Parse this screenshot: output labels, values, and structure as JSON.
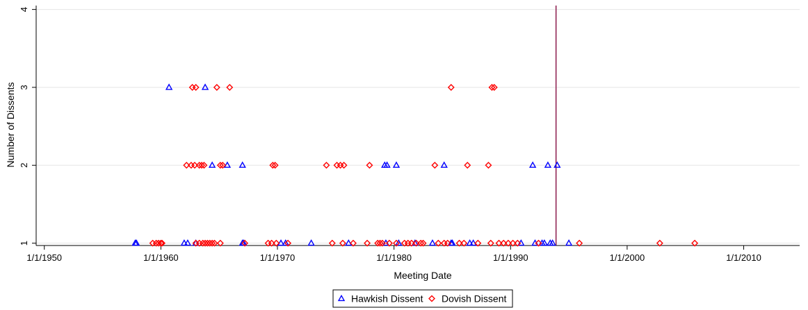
{
  "chart_data": {
    "type": "scatter",
    "title": "",
    "xlabel": "Meeting Date",
    "ylabel": "Number of Dissents",
    "xlim": [
      1949.3,
      2014.8
    ],
    "ylim": [
      0.97,
      4.05
    ],
    "x_ticks": [
      1950,
      1960,
      1970,
      1980,
      1990,
      2000,
      2010
    ],
    "x_tick_labels": [
      "1/1/1950",
      "1/1/1960",
      "1/1/1970",
      "1/1/1980",
      "1/1/1990",
      "1/1/2000",
      "1/1/2010"
    ],
    "y_ticks": [
      1,
      2,
      3,
      4
    ],
    "y_tick_labels": [
      "1",
      "2",
      "3",
      "4"
    ],
    "grid": "horizontal",
    "legend_position": "bottom-center",
    "reference_line": {
      "x": 1993.9,
      "color": "#8b1a4b"
    },
    "series": [
      {
        "name": "Hawkish Dissent",
        "marker": "triangle",
        "color": "#0000ff",
        "points": [
          [
            1957.8,
            1
          ],
          [
            1957.9,
            1
          ],
          [
            1962.0,
            1
          ],
          [
            1962.3,
            1
          ],
          [
            1963.0,
            1
          ],
          [
            1967.0,
            1
          ],
          [
            1967.1,
            1
          ],
          [
            1970.3,
            1
          ],
          [
            1970.7,
            1
          ],
          [
            1972.9,
            1
          ],
          [
            1976.1,
            1
          ],
          [
            1979.3,
            1
          ],
          [
            1980.4,
            1
          ],
          [
            1981.8,
            1
          ],
          [
            1983.3,
            1
          ],
          [
            1984.9,
            1
          ],
          [
            1985.0,
            1
          ],
          [
            1986.5,
            1
          ],
          [
            1986.8,
            1
          ],
          [
            1990.9,
            1
          ],
          [
            1992.1,
            1
          ],
          [
            1992.7,
            1
          ],
          [
            1992.9,
            1
          ],
          [
            1993.4,
            1
          ],
          [
            1993.6,
            1
          ],
          [
            1995.0,
            1
          ],
          [
            1964.4,
            2
          ],
          [
            1965.7,
            2
          ],
          [
            1967.0,
            2
          ],
          [
            1979.2,
            2
          ],
          [
            1979.4,
            2
          ],
          [
            1980.2,
            2
          ],
          [
            1984.3,
            2
          ],
          [
            1991.9,
            2
          ],
          [
            1993.2,
            2
          ],
          [
            1994.0,
            2
          ],
          [
            1960.7,
            3
          ],
          [
            1963.8,
            3
          ]
        ]
      },
      {
        "name": "Dovish Dissent",
        "marker": "diamond",
        "color": "#ff0000",
        "points": [
          [
            1959.3,
            1
          ],
          [
            1959.6,
            1
          ],
          [
            1959.8,
            1
          ],
          [
            1960.0,
            1
          ],
          [
            1960.1,
            1
          ],
          [
            1963.0,
            1
          ],
          [
            1963.3,
            1
          ],
          [
            1963.6,
            1
          ],
          [
            1963.8,
            1
          ],
          [
            1964.0,
            1
          ],
          [
            1964.2,
            1
          ],
          [
            1964.4,
            1
          ],
          [
            1964.6,
            1
          ],
          [
            1965.1,
            1
          ],
          [
            1967.2,
            1
          ],
          [
            1969.2,
            1
          ],
          [
            1969.5,
            1
          ],
          [
            1969.9,
            1
          ],
          [
            1970.9,
            1
          ],
          [
            1974.7,
            1
          ],
          [
            1975.6,
            1
          ],
          [
            1976.5,
            1
          ],
          [
            1977.7,
            1
          ],
          [
            1978.6,
            1
          ],
          [
            1978.8,
            1
          ],
          [
            1979.0,
            1
          ],
          [
            1979.6,
            1
          ],
          [
            1980.2,
            1
          ],
          [
            1980.9,
            1
          ],
          [
            1981.2,
            1
          ],
          [
            1981.5,
            1
          ],
          [
            1981.9,
            1
          ],
          [
            1982.3,
            1
          ],
          [
            1982.5,
            1
          ],
          [
            1983.8,
            1
          ],
          [
            1984.3,
            1
          ],
          [
            1984.6,
            1
          ],
          [
            1985.6,
            1
          ],
          [
            1986.0,
            1
          ],
          [
            1987.2,
            1
          ],
          [
            1988.3,
            1
          ],
          [
            1989.0,
            1
          ],
          [
            1989.4,
            1
          ],
          [
            1989.8,
            1
          ],
          [
            1990.2,
            1
          ],
          [
            1990.6,
            1
          ],
          [
            1992.4,
            1
          ],
          [
            1995.9,
            1
          ],
          [
            2002.8,
            1
          ],
          [
            2005.8,
            1
          ],
          [
            1962.2,
            2
          ],
          [
            1962.6,
            2
          ],
          [
            1962.9,
            2
          ],
          [
            1963.3,
            2
          ],
          [
            1963.5,
            2
          ],
          [
            1963.7,
            2
          ],
          [
            1965.1,
            2
          ],
          [
            1965.3,
            2
          ],
          [
            1969.6,
            2
          ],
          [
            1969.8,
            2
          ],
          [
            1974.2,
            2
          ],
          [
            1975.1,
            2
          ],
          [
            1975.4,
            2
          ],
          [
            1975.7,
            2
          ],
          [
            1977.9,
            2
          ],
          [
            1983.5,
            2
          ],
          [
            1986.3,
            2
          ],
          [
            1988.1,
            2
          ],
          [
            1962.7,
            3
          ],
          [
            1963.0,
            3
          ],
          [
            1964.8,
            3
          ],
          [
            1965.9,
            3
          ],
          [
            1984.9,
            3
          ],
          [
            1988.4,
            3
          ],
          [
            1988.6,
            3
          ]
        ]
      }
    ]
  }
}
